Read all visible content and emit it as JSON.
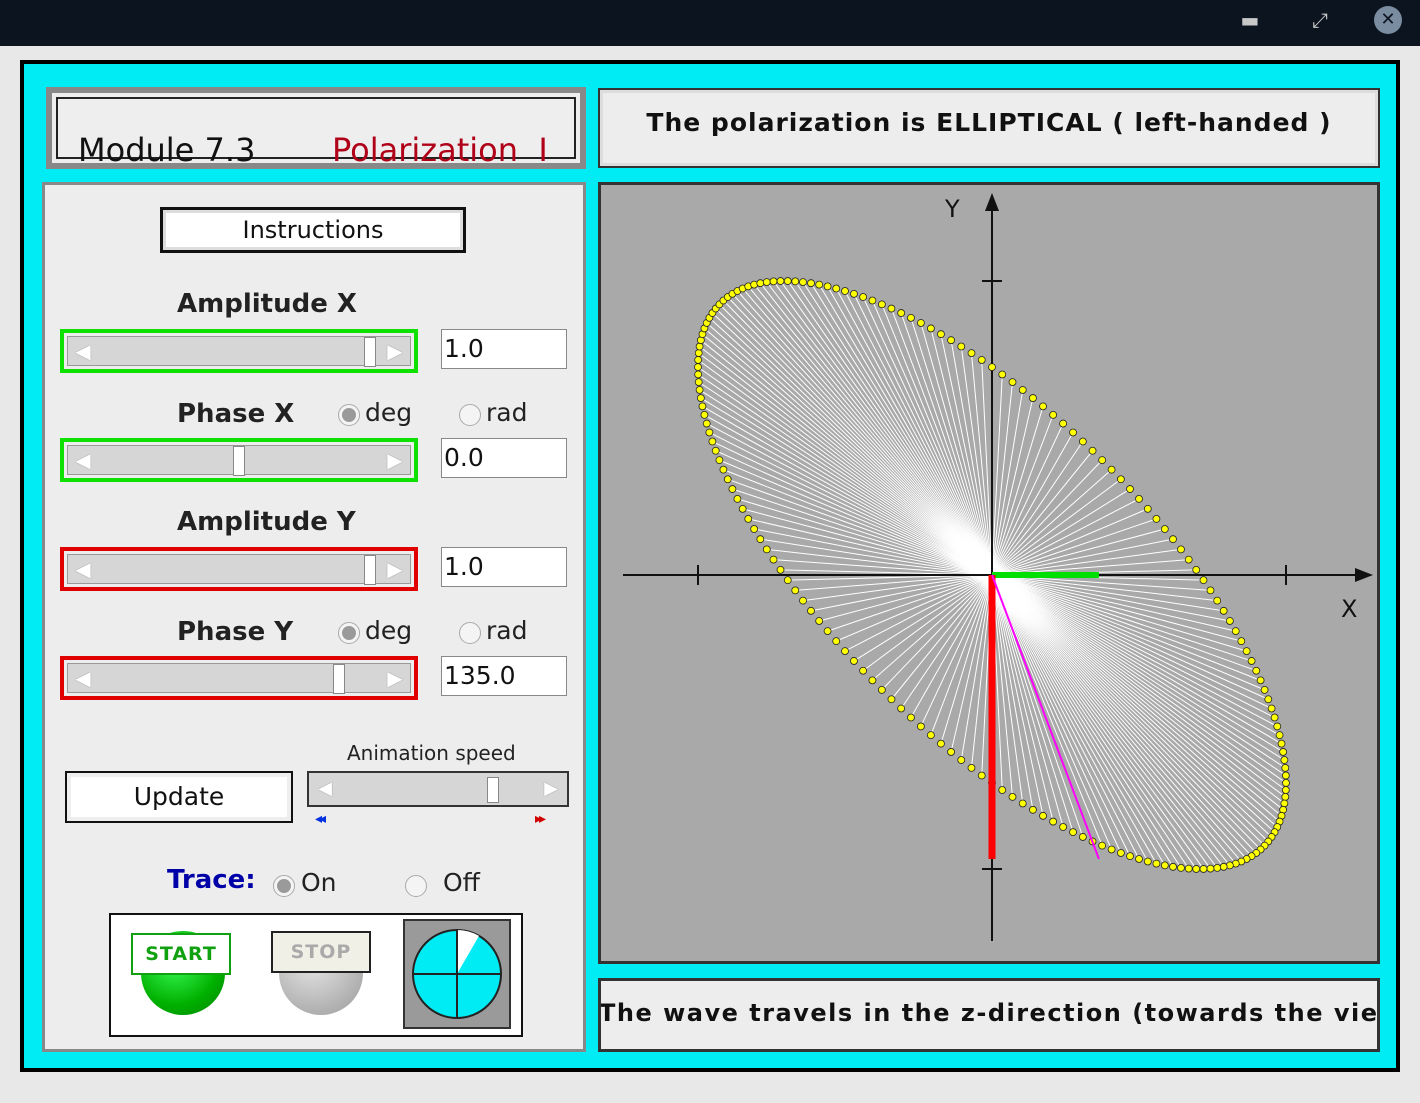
{
  "window": {
    "minimize_icon": "minimize-icon",
    "restore_icon": "restore-icon",
    "close_icon": "close-icon",
    "minimize_glyph": "▬",
    "restore_glyph": "⤢",
    "close_glyph": "✕"
  },
  "header": {
    "module": "Module 7.3",
    "title": "Polarization  I",
    "title_color": "#b00018"
  },
  "status": {
    "text": "The polarization is ELLIPTICAL ( left-handed )"
  },
  "footer": {
    "text": "The wave travels in the z-direction (towards the viewer"
  },
  "controls": {
    "instructions_label": "Instructions",
    "amplitude_x": {
      "label": "Amplitude X",
      "value": "1.0",
      "slider_fraction": 0.97
    },
    "phase_x": {
      "label": "Phase X",
      "value": "0.0",
      "slider_fraction": 0.5,
      "unit_deg": "deg",
      "unit_rad": "rad",
      "selected": "deg"
    },
    "amplitude_y": {
      "label": "Amplitude Y",
      "value": "1.0",
      "slider_fraction": 0.97
    },
    "phase_y": {
      "label": "Phase Y",
      "value": "135.0",
      "slider_fraction": 0.86,
      "unit_deg": "deg",
      "unit_rad": "rad",
      "selected": "deg"
    },
    "update_label": "Update",
    "animation_speed": {
      "label": "Animation speed",
      "slider_fraction": 0.78,
      "slow_glyph": "◂◂",
      "fast_glyph": "▸▸"
    },
    "trace": {
      "label": "Trace:",
      "on_label": "On",
      "off_label": "Off",
      "selected": "On"
    },
    "start_label": "START",
    "stop_label": "STOP",
    "accent_green": "#0ee000",
    "accent_red": "#e00000"
  },
  "plot": {
    "x_label": "X",
    "y_label": "Y",
    "amp_x": 1.0,
    "amp_y": 1.0,
    "phase_x_deg": 0.0,
    "phase_y_deg": 135.0,
    "ellipse_color": "#ffff00",
    "x_component_color": "#00e000",
    "y_component_color": "#ff0000",
    "field_vector_color": "#ff00ff",
    "trace_line_color": "#ffffff",
    "current_phase_deg": 30
  }
}
